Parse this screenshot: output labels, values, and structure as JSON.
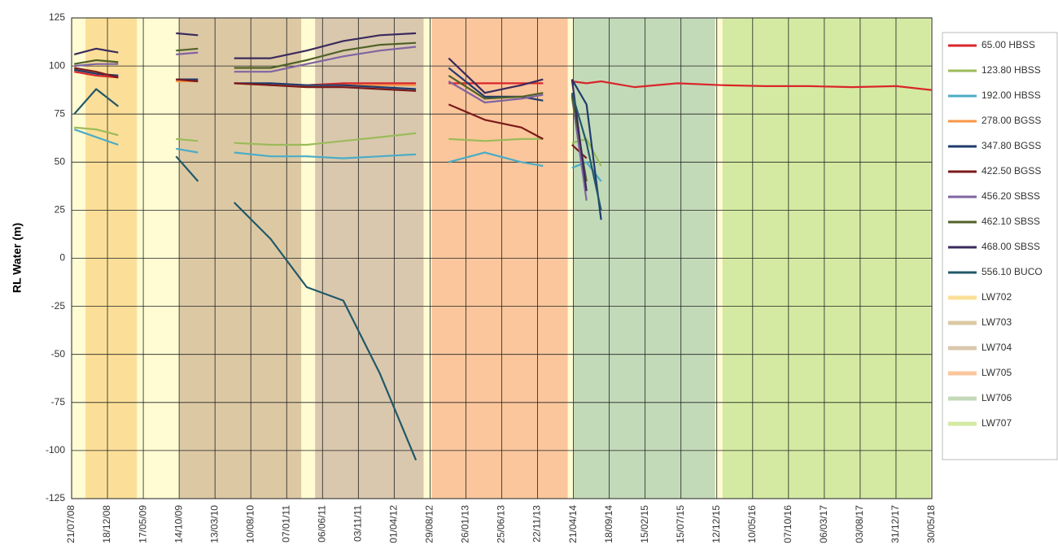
{
  "chart_data": {
    "type": "line",
    "y_label": "RL Water (m)",
    "ylim": [
      -125,
      125
    ],
    "yticks": [
      -125,
      -100,
      -75,
      -50,
      -25,
      0,
      25,
      50,
      75,
      100,
      125
    ],
    "xlim": [
      "21/07/08",
      "30/05/18"
    ],
    "xticks": [
      "21/07/08",
      "18/12/08",
      "17/05/09",
      "14/10/09",
      "13/03/10",
      "10/08/10",
      "07/01/11",
      "06/06/11",
      "03/11/11",
      "01/04/12",
      "29/08/12",
      "26/01/13",
      "25/06/13",
      "22/11/13",
      "21/04/14",
      "18/09/14",
      "15/02/15",
      "15/07/15",
      "12/12/15",
      "10/05/16",
      "07/10/16",
      "06/03/17",
      "03/08/17",
      "31/12/17",
      "30/05/18"
    ],
    "grid": true,
    "plot_background": "#fffbd2",
    "bands": [
      {
        "name": "LW702",
        "color": "#fbdf98",
        "start": "17/09/08",
        "end": "20/04/09"
      },
      {
        "name": "LW703",
        "color": "#dcc9a4",
        "start": "14/10/09",
        "end": "09/03/11"
      },
      {
        "name": "LW704",
        "color": "#d9c8ae",
        "start": "06/05/11",
        "end": "02/08/12"
      },
      {
        "name": "LW705",
        "color": "#fbc69c",
        "start": "05/09/12",
        "end": "28/03/14"
      },
      {
        "name": "LW706",
        "color": "#c3dab8",
        "start": "21/04/14",
        "end": "05/12/15"
      },
      {
        "name": "LW707",
        "color": "#d4eaa2",
        "start": "05/01/16",
        "end": "25/05/18"
      }
    ],
    "x": [
      "01/08/08",
      "01/11/08",
      "01/02/09",
      "01/06/09",
      "01/10/09",
      "01/01/10",
      "01/04/10",
      "01/06/10",
      "01/11/10",
      "01/04/11",
      "01/09/11",
      "01/02/12",
      "01/07/12",
      "01/09/12",
      "15/11/12",
      "15/04/13",
      "15/09/13",
      "15/12/13",
      "01/03/14",
      "15/04/14",
      "15/06/14",
      "15/08/14",
      "01/01/15",
      "01/07/15",
      "01/01/16",
      "01/07/16",
      "01/01/17",
      "01/07/17",
      "01/01/18",
      "30/05/18"
    ],
    "series": [
      {
        "name": "65.00 HBSS",
        "color": "#d9262b",
        "values": [
          97,
          95,
          94,
          null,
          93,
          92,
          null,
          91,
          90,
          90,
          91,
          91,
          91,
          null,
          91,
          91,
          91,
          91,
          null,
          92,
          91,
          92,
          89,
          91,
          90,
          89.5,
          89.5,
          89,
          89.5,
          87.5
        ]
      },
      {
        "name": "123.80 HBSS",
        "color": "#9bbb59",
        "values": [
          68,
          67,
          64,
          null,
          62,
          61,
          null,
          60,
          59,
          59,
          61,
          63,
          65,
          null,
          62,
          61,
          62,
          62,
          null,
          60,
          62,
          48,
          null,
          null,
          null,
          null,
          null,
          null,
          null,
          null
        ]
      },
      {
        "name": "192.00 HBSS",
        "color": "#4bacc6",
        "values": [
          67,
          63,
          59,
          null,
          57,
          55,
          null,
          55,
          53,
          53,
          52,
          53,
          54,
          null,
          50,
          55,
          50,
          48,
          null,
          47,
          50,
          40,
          null,
          null,
          null,
          null,
          null,
          null,
          null,
          null
        ]
      },
      {
        "name": "278.00 BGSS",
        "color": "#f79646",
        "values": [
          98,
          96,
          95,
          null,
          92,
          92,
          null,
          91,
          90,
          90,
          90,
          90,
          90,
          null,
          null,
          null,
          null,
          null,
          null,
          null,
          null,
          null,
          null,
          null,
          null,
          null,
          null,
          null,
          null,
          null
        ]
      },
      {
        "name": "347.80 BGSS",
        "color": "#1f3b6e",
        "values": [
          98,
          96,
          95,
          null,
          93,
          93,
          null,
          91,
          91,
          90,
          90,
          89,
          88,
          null,
          99,
          84,
          84,
          82,
          null,
          93,
          80,
          20,
          null,
          null,
          null,
          null,
          null,
          null,
          null,
          null
        ]
      },
      {
        "name": "422.50 BGSS",
        "color": "#7b1a1a",
        "values": [
          99,
          97,
          94,
          null,
          93,
          92,
          null,
          91,
          90,
          89,
          89,
          88,
          87,
          null,
          80,
          72,
          68,
          62,
          null,
          59,
          52,
          null,
          null,
          null,
          null,
          null,
          null,
          null,
          null,
          null
        ]
      },
      {
        "name": "456.20 SBSS",
        "color": "#8064a2",
        "values": [
          100,
          101,
          101,
          null,
          106,
          107,
          null,
          97,
          97,
          101,
          105,
          108,
          110,
          null,
          92,
          81,
          83,
          85,
          null,
          84,
          30,
          null,
          null,
          null,
          null,
          null,
          null,
          null,
          null,
          null
        ]
      },
      {
        "name": "462.10 SBSS",
        "color": "#4f6228",
        "values": [
          101,
          103,
          102,
          null,
          108,
          109,
          null,
          99,
          99,
          103,
          108,
          111,
          112,
          null,
          95,
          83,
          84,
          86,
          null,
          85,
          40,
          null,
          null,
          null,
          null,
          null,
          null,
          null,
          null,
          null
        ]
      },
      {
        "name": "468.00 SBSS",
        "color": "#3b2a5c",
        "values": [
          106,
          109,
          107,
          null,
          117,
          116,
          null,
          104,
          104,
          108,
          113,
          116,
          117,
          null,
          104,
          86,
          90,
          93,
          null,
          93,
          35,
          null,
          null,
          null,
          null,
          null,
          null,
          null,
          null,
          null
        ]
      },
      {
        "name": "556.10 BUCO",
        "color": "#215868",
        "values": [
          75,
          88,
          79,
          null,
          53,
          40,
          null,
          29,
          10,
          -15,
          -22,
          -60,
          -105,
          null,
          null,
          null,
          null,
          null,
          null,
          86,
          60,
          25,
          null,
          null,
          null,
          null,
          null,
          null,
          null,
          null
        ]
      }
    ]
  }
}
